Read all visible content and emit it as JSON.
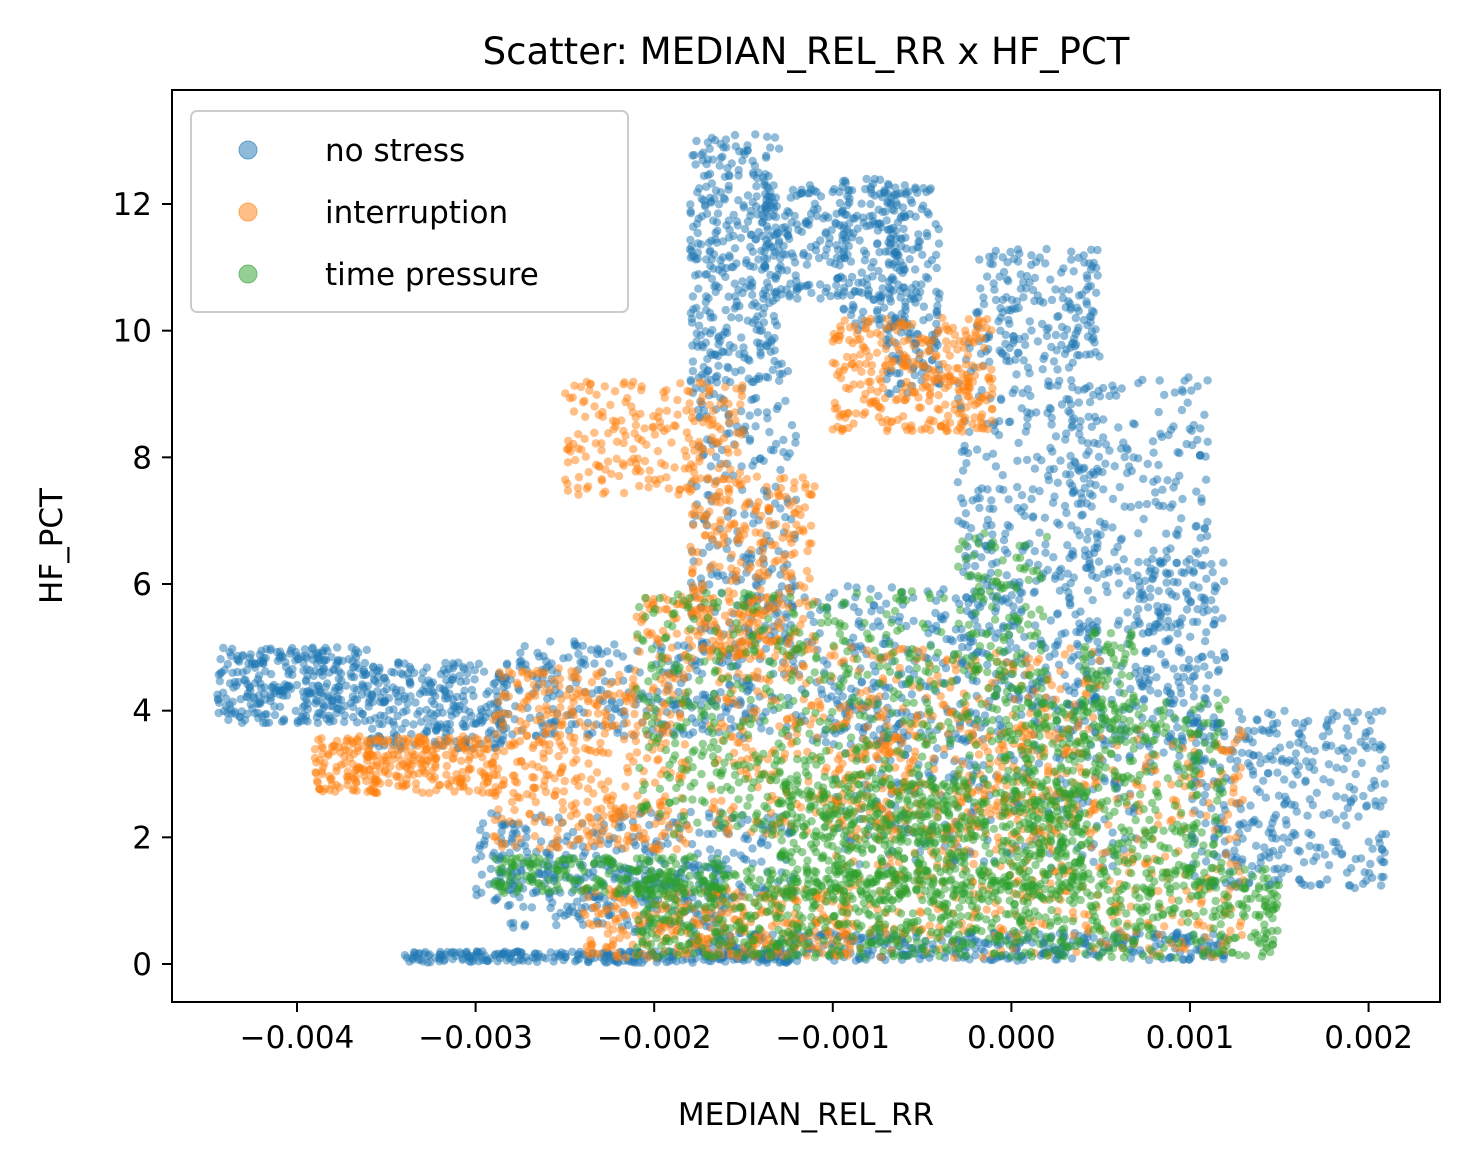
{
  "chart_data": {
    "type": "scatter",
    "title": "Scatter: MEDIAN_REL_RR x HF_PCT",
    "xlabel": "MEDIAN_REL_RR",
    "ylabel": "HF_PCT",
    "xlim": [
      -0.0047,
      0.0024
    ],
    "ylim": [
      -0.6,
      13.8
    ],
    "xticks": [
      -0.004,
      -0.003,
      -0.002,
      -0.001,
      0.0,
      0.001,
      0.002
    ],
    "xtick_labels": [
      "−0.004",
      "−0.003",
      "−0.002",
      "−0.001",
      "0.000",
      "0.001",
      "0.002"
    ],
    "yticks": [
      0,
      2,
      4,
      6,
      8,
      10,
      12
    ],
    "ytick_labels": [
      "0",
      "2",
      "4",
      "6",
      "8",
      "10",
      "12"
    ],
    "grid": false,
    "legend_position": "top-left",
    "series": [
      {
        "name": "no stress",
        "color": "#1f77b4",
        "regions": [
          {
            "x": [
              -0.00445,
              -0.0036
            ],
            "y": [
              3.8,
              5.0
            ],
            "n": 320
          },
          {
            "x": [
              -0.0036,
              -0.0028
            ],
            "y": [
              3.4,
              4.8
            ],
            "n": 280
          },
          {
            "x": [
              -0.0028,
              -0.0015
            ],
            "y": [
              3.6,
              5.1
            ],
            "n": 260
          },
          {
            "x": [
              -0.003,
              -0.0012
            ],
            "y": [
              1.0,
              2.4
            ],
            "n": 280
          },
          {
            "x": [
              -0.0029,
              -0.0016
            ],
            "y": [
              0.5,
              1.6
            ],
            "n": 200
          },
          {
            "x": [
              -0.0034,
              -0.0012
            ],
            "y": [
              0.02,
              0.2
            ],
            "n": 260
          },
          {
            "x": [
              -0.0018,
              0.0012
            ],
            "y": [
              0.05,
              0.5
            ],
            "n": 400
          },
          {
            "x": [
              -0.0018,
              -0.0013
            ],
            "y": [
              9.5,
              13.1
            ],
            "n": 320
          },
          {
            "x": [
              -0.0014,
              -0.0009
            ],
            "y": [
              10.5,
              12.3
            ],
            "n": 160
          },
          {
            "x": [
              -0.00095,
              -0.0006
            ],
            "y": [
              10.0,
              12.4
            ],
            "n": 160
          },
          {
            "x": [
              -0.0007,
              -0.0004
            ],
            "y": [
              9.0,
              12.3
            ],
            "n": 180
          },
          {
            "x": [
              -0.0002,
              0.0005
            ],
            "y": [
              9.5,
              11.3
            ],
            "n": 160
          },
          {
            "x": [
              -0.0018,
              -0.0012
            ],
            "y": [
              5.0,
              9.5
            ],
            "n": 260
          },
          {
            "x": [
              -0.0003,
              0.0005
            ],
            "y": [
              4.0,
              10.0
            ],
            "n": 420
          },
          {
            "x": [
              0.0003,
              0.0011
            ],
            "y": [
              3.5,
              9.3
            ],
            "n": 300
          },
          {
            "x": [
              0.0007,
              0.0012
            ],
            "y": [
              3.0,
              6.4
            ],
            "n": 160
          },
          {
            "x": [
              0.001,
              0.0021
            ],
            "y": [
              1.2,
              4.0
            ],
            "n": 360
          },
          {
            "x": [
              -0.0015,
              -0.0002
            ],
            "y": [
              3.5,
              6.0
            ],
            "n": 260
          },
          {
            "x": [
              -0.001,
              0.0007
            ],
            "y": [
              1.5,
              4.5
            ],
            "n": 320
          }
        ]
      },
      {
        "name": "interruption",
        "color": "#ff7f0e",
        "regions": [
          {
            "x": [
              -0.0039,
              -0.0029
            ],
            "y": [
              2.7,
              3.6
            ],
            "n": 300
          },
          {
            "x": [
              -0.0029,
              -0.0018
            ],
            "y": [
              1.8,
              4.7
            ],
            "n": 420
          },
          {
            "x": [
              -0.0024,
              -0.0009
            ],
            "y": [
              0.1,
              1.2
            ],
            "n": 340
          },
          {
            "x": [
              -0.0025,
              -0.0015
            ],
            "y": [
              7.4,
              9.2
            ],
            "n": 220
          },
          {
            "x": [
              -0.001,
              -0.0001
            ],
            "y": [
              8.4,
              10.2
            ],
            "n": 320
          },
          {
            "x": [
              -0.0018,
              -0.0011
            ],
            "y": [
              4.8,
              7.7
            ],
            "n": 260
          },
          {
            "x": [
              -0.0021,
              -0.0013
            ],
            "y": [
              4.8,
              5.8
            ],
            "n": 100
          },
          {
            "x": [
              -0.0017,
              0.0005
            ],
            "y": [
              2.0,
              5.0
            ],
            "n": 520
          },
          {
            "x": [
              -0.001,
              0.0013
            ],
            "y": [
              0.1,
              3.7
            ],
            "n": 520
          }
        ]
      },
      {
        "name": "time pressure",
        "color": "#2ca02c",
        "regions": [
          {
            "x": [
              -0.0029,
              -0.0016
            ],
            "y": [
              1.1,
              1.7
            ],
            "n": 200
          },
          {
            "x": [
              -0.0021,
              -0.0003
            ],
            "y": [
              2.0,
              5.9
            ],
            "n": 520
          },
          {
            "x": [
              -0.0003,
              0.0002
            ],
            "y": [
              3.0,
              6.8
            ],
            "n": 180
          },
          {
            "x": [
              -0.0021,
              0.0015
            ],
            "y": [
              0.1,
              1.5
            ],
            "n": 900
          },
          {
            "x": [
              -0.0013,
              0.0004
            ],
            "y": [
              1.0,
              3.0
            ],
            "n": 600
          },
          {
            "x": [
              0.0,
              0.0012
            ],
            "y": [
              1.5,
              4.2
            ],
            "n": 360
          },
          {
            "x": [
              0.0004,
              0.0007
            ],
            "y": [
              3.5,
              5.3
            ],
            "n": 80
          }
        ]
      }
    ]
  }
}
